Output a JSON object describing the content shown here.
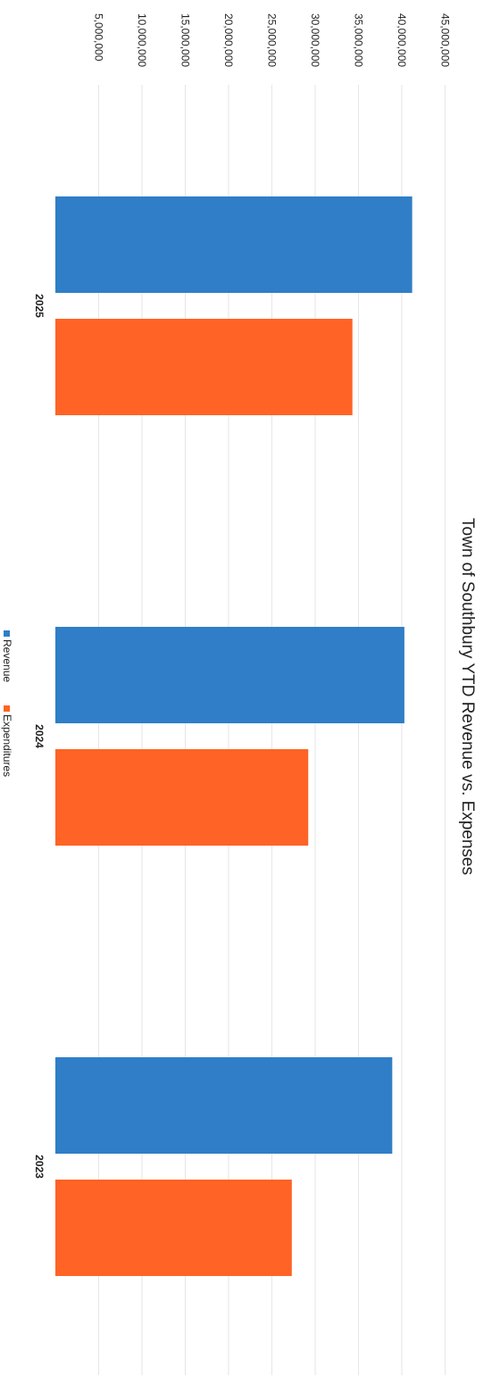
{
  "chart_data": {
    "type": "bar",
    "title": "Town of Southbury YTD Revenue vs. Expenses",
    "categories": [
      "2025",
      "2024",
      "2023"
    ],
    "series": [
      {
        "name": "Revenue",
        "values": [
          41200000,
          40300000,
          38900000
        ],
        "color": "#2f7ec7"
      },
      {
        "name": "Expenditures",
        "values": [
          34300000,
          29200000,
          27300000
        ],
        "color": "#ff6326"
      }
    ],
    "ylim": [
      0,
      45000000
    ],
    "ticks": [
      {
        "value": 5000000,
        "label": "5,000,000"
      },
      {
        "value": 10000000,
        "label": "10,000,000"
      },
      {
        "value": 15000000,
        "label": "15,000,000"
      },
      {
        "value": 20000000,
        "label": "20,000,000"
      },
      {
        "value": 25000000,
        "label": "25,000,000"
      },
      {
        "value": 30000000,
        "label": "30,000,000"
      },
      {
        "value": 35000000,
        "label": "35,000,000"
      },
      {
        "value": 40000000,
        "label": "40,000,000"
      },
      {
        "value": 45000000,
        "label": "45,000,000"
      }
    ],
    "grid": true,
    "legend": "bottom",
    "orientation": "rotated-90-clockwise"
  }
}
